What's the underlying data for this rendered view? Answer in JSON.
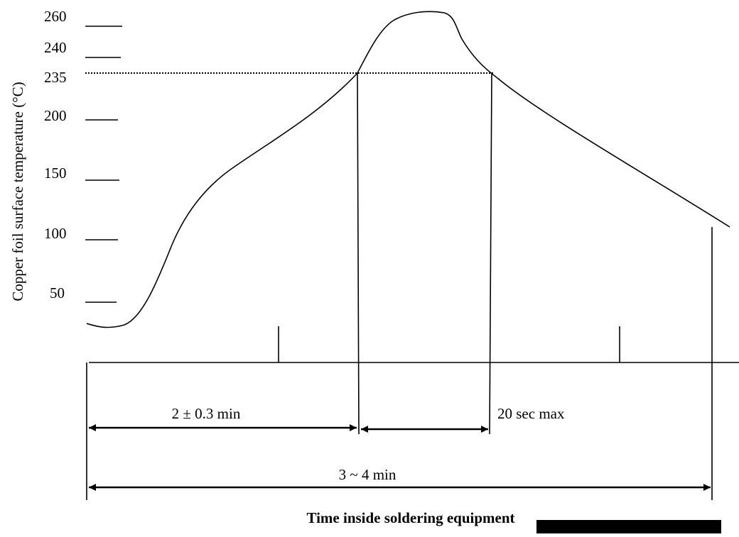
{
  "y_axis": {
    "label": "Copper foil surface temperature (°C)",
    "ticks": [
      "260",
      "240",
      "235",
      "200",
      "150",
      "100",
      "50"
    ]
  },
  "intervals": [
    "2 ± 0.3 min",
    "20 sec max",
    "3 ~ 4 min"
  ],
  "x_axis": {
    "label": "Time inside soldering equipment"
  }
}
